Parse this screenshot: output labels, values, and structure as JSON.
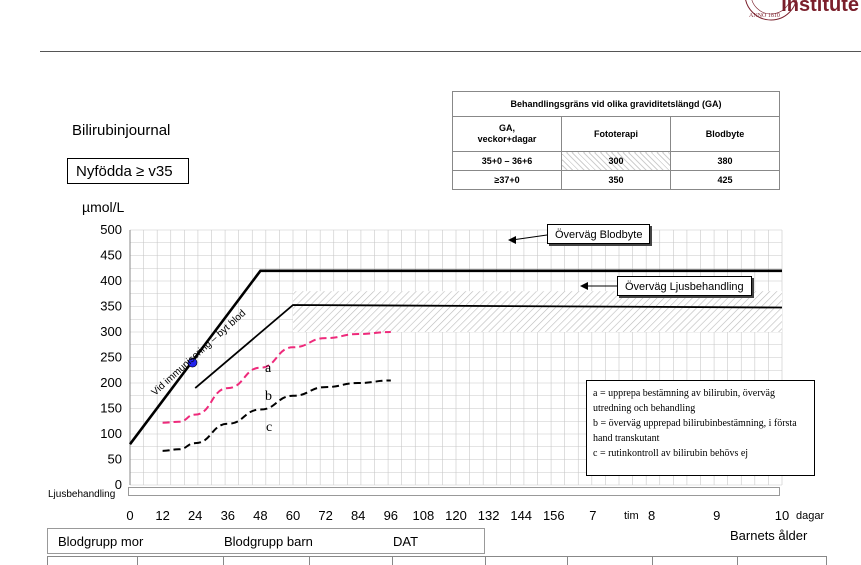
{
  "header": {
    "logo_text": "Institute"
  },
  "title": "Bilirubinjournal",
  "subtitle": "Nyfödda ≥ v35",
  "ga_table": {
    "title": "Behandlingsgräns vid olika graviditetslängd (GA)",
    "head": [
      "GA,\nveckor+dagar",
      "Fototerapi",
      "Blodbyte"
    ],
    "rows": [
      [
        "35+0 – 36+6",
        "300",
        "380"
      ],
      [
        "≥37+0",
        "350",
        "425"
      ]
    ]
  },
  "chart_data": {
    "type": "line",
    "ylabel": "µmol/L",
    "ylim": [
      0,
      500
    ],
    "y_ticks": [
      0,
      50,
      100,
      150,
      200,
      250,
      300,
      350,
      400,
      450,
      500
    ],
    "x_ticks": [
      "0",
      "12",
      "24",
      "36",
      "48",
      "60",
      "72",
      "84",
      "96",
      "108",
      "120",
      "132",
      "144",
      "156",
      "7",
      "8",
      "9",
      "10"
    ],
    "x_unit_hours": "tim",
    "x_unit_days": "dagar",
    "xlabel": "Barnets ålder",
    "grid": true,
    "series": [
      {
        "id": "blodbyte",
        "style": "solid-thick",
        "color": "#000000",
        "points": [
          [
            0,
            80
          ],
          [
            48,
            420
          ],
          [
            240,
            420
          ]
        ]
      },
      {
        "id": "ljus",
        "style": "solid",
        "color": "#000000",
        "points": [
          [
            24,
            190
          ],
          [
            60,
            353
          ],
          [
            240,
            348
          ]
        ]
      },
      {
        "name": "a",
        "style": "dashed",
        "color": "#ee2a7b",
        "points": [
          [
            12,
            122
          ],
          [
            18,
            124
          ],
          [
            24,
            138
          ],
          [
            36,
            190
          ],
          [
            48,
            230
          ],
          [
            60,
            270
          ],
          [
            72,
            288
          ],
          [
            84,
            296
          ],
          [
            96,
            300
          ]
        ]
      },
      {
        "name": "c",
        "style": "dashed",
        "color": "#000000",
        "points": [
          [
            12,
            67
          ],
          [
            18,
            70
          ],
          [
            24,
            82
          ],
          [
            36,
            120
          ],
          [
            48,
            148
          ],
          [
            60,
            175
          ],
          [
            72,
            192
          ],
          [
            84,
            200
          ],
          [
            96,
            205
          ]
        ]
      }
    ],
    "hatched_band": {
      "x": [
        60,
        240
      ],
      "y": [
        300,
        380
      ]
    },
    "point": {
      "x": 23,
      "y": 240,
      "color": "#2222ee"
    },
    "curve_labels": [
      "a",
      "b",
      "c"
    ],
    "diagonal_label": "Vid immunisering – byt blod",
    "annotations": [
      "Överväg Blodbyte",
      "Överväg Ljusbehandling"
    ],
    "ljus_row_label": "Ljusbehandling"
  },
  "legend": [
    "a = upprepa bestämning av bilirubin, överväg utredning och behandling",
    "b = överväg upprepad bilirubinbestämning, i första hand transkutant",
    "c = rutinkontroll av bilirubin behövs ej"
  ],
  "bottom_form": {
    "fields": [
      "Blodgrupp mor",
      "Blodgrupp barn",
      "DAT"
    ]
  }
}
